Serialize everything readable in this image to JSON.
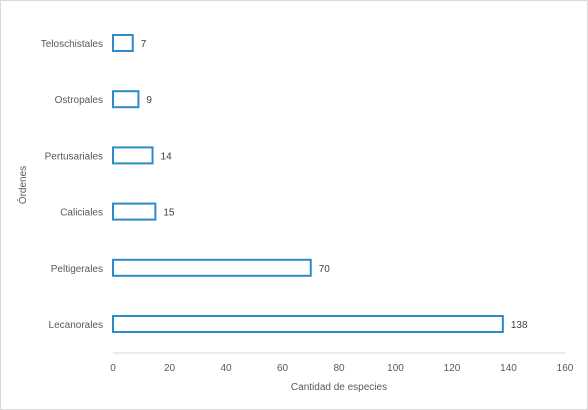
{
  "chart_data": {
    "type": "bar",
    "orientation": "horizontal",
    "categories": [
      "Teloschistales",
      "Ostropales",
      "Pertusariales",
      "Caliciales",
      "Peltigerales",
      "Lecanorales"
    ],
    "values": [
      7,
      9,
      14,
      15,
      70,
      138
    ],
    "xlabel": "Cantidad de especies",
    "ylabel": "Órdenes",
    "xlim": [
      0,
      160
    ],
    "xticks": [
      0,
      20,
      40,
      60,
      80,
      100,
      120,
      140,
      160
    ],
    "grid": false,
    "legend": "none",
    "bar_fill": "#ffffff",
    "bar_stroke": "#2e8bc9",
    "show_data_labels": true
  }
}
